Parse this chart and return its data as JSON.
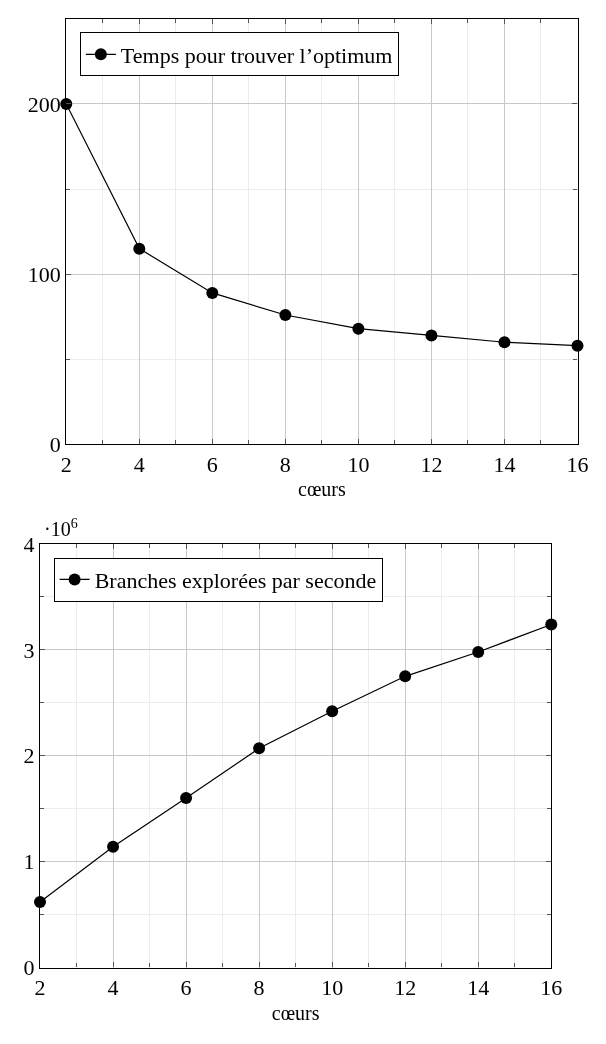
{
  "chart_data": [
    {
      "type": "line",
      "xlabel": "cœurs",
      "x": [
        2,
        4,
        6,
        8,
        10,
        12,
        14,
        16
      ],
      "series": [
        {
          "name": "Temps pour trouver l’optimum",
          "color": "#000000",
          "values": [
            200,
            115,
            89,
            76,
            68,
            64,
            60,
            58
          ]
        }
      ],
      "xlim": [
        2,
        16
      ],
      "ylim": [
        0,
        250
      ],
      "xticks": [
        2,
        4,
        6,
        8,
        10,
        12,
        14,
        16
      ],
      "yticks": [
        0,
        100,
        200
      ],
      "grid": true,
      "legend": "top left",
      "marker": "circle",
      "line_style": "solid"
    },
    {
      "type": "line",
      "xlabel": "cœurs",
      "x": [
        2,
        4,
        6,
        8,
        10,
        12,
        14,
        16
      ],
      "series": [
        {
          "name": "Branches explorées par seconde",
          "color": "#000000",
          "values": [
            0.62,
            1.14,
            1.6,
            2.07,
            2.42,
            2.75,
            2.98,
            3.24
          ]
        }
      ],
      "xlim": [
        2,
        16
      ],
      "ylim": [
        0,
        4
      ],
      "xticks": [
        2,
        4,
        6,
        8,
        10,
        12,
        14,
        16
      ],
      "yticks": [
        0,
        1,
        2,
        3,
        4
      ],
      "grid": true,
      "legend": "top left",
      "marker": "circle",
      "line_style": "solid",
      "annotations": [
        "·10$^{6}$"
      ]
    }
  ]
}
